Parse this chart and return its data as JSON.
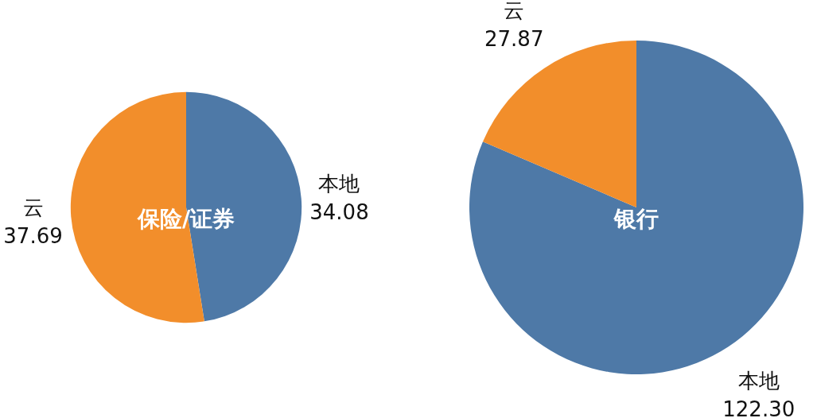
{
  "chart_data": [
    {
      "type": "pie",
      "title": "保险/证券",
      "categories": [
        "本地",
        "云"
      ],
      "values": [
        34.08,
        37.69
      ],
      "value_labels": [
        "34.08",
        "37.69"
      ],
      "colors": [
        "#4e79a7",
        "#f28e2b"
      ]
    },
    {
      "type": "pie",
      "title": "银行",
      "categories": [
        "本地",
        "云"
      ],
      "values": [
        122.3,
        27.87
      ],
      "value_labels": [
        "122.30",
        "27.87"
      ],
      "colors": [
        "#4e79a7",
        "#f28e2b"
      ]
    }
  ]
}
